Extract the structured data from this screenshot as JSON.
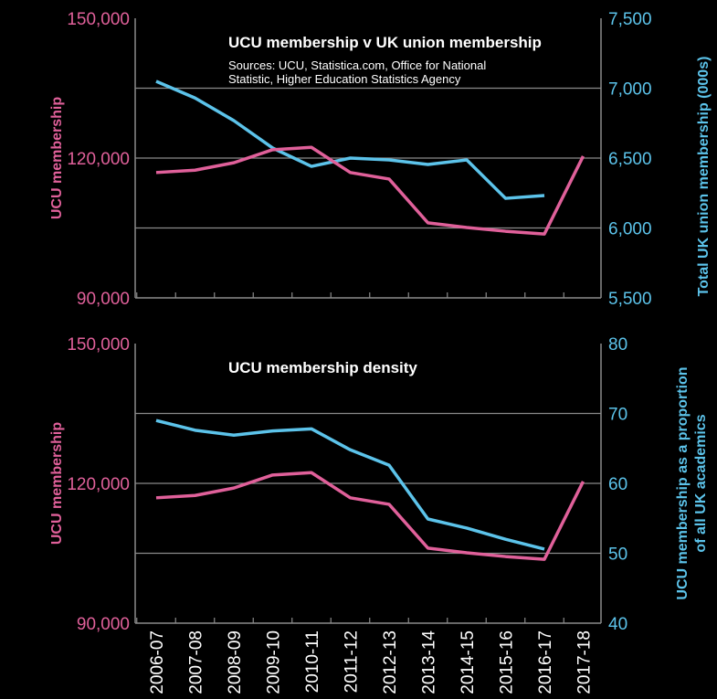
{
  "colors": {
    "ucu": "#e0609a",
    "uk": "#5cc3ea",
    "grid": "#8a8a8a",
    "background": "#000000"
  },
  "chart_data": [
    {
      "type": "line",
      "title": "UCU membership v UK union membership",
      "subtitle_lines": [
        "Sources: UCU, Statistica.com, Office for National",
        "Statistic, Higher Education Statistics Agency"
      ],
      "categories": [
        "2006-07",
        "2007-08",
        "2008-09",
        "2009-10",
        "2010-11",
        "2011-12",
        "2012-13",
        "2013-14",
        "2014-15",
        "2015-16",
        "2016-17",
        "2017-18"
      ],
      "ylabel_left": "UCU membership",
      "ylabel_right": "Total UK union membership (000s)",
      "ylim_left": [
        90000,
        150000
      ],
      "yticks_left": [
        "90,000",
        "120,000",
        "150,000"
      ],
      "ylim_right": [
        5500,
        7500
      ],
      "yticks_right": [
        "5,500",
        "6,000",
        "6,500",
        "7,000",
        "7,500"
      ],
      "grid": true,
      "series": [
        {
          "axis": "left",
          "color": "ucu",
          "values": [
            116900,
            117400,
            119000,
            121800,
            122300,
            116900,
            115500,
            106100,
            105100,
            104300,
            103700,
            120400
          ]
        },
        {
          "axis": "right",
          "color": "uk",
          "values": [
            7049,
            6930,
            6768,
            6572,
            6441,
            6500,
            6487,
            6454,
            6487,
            6212,
            6232,
            null
          ]
        }
      ]
    },
    {
      "type": "line",
      "title": "UCU membership density",
      "categories": [
        "2006-07",
        "2007-08",
        "2008-09",
        "2009-10",
        "2010-11",
        "2011-12",
        "2012-13",
        "2013-14",
        "2014-15",
        "2015-16",
        "2016-17",
        "2017-18"
      ],
      "ylabel_left": "UCU membership",
      "ylabel_right_lines": [
        "UCU membership as a proportion",
        "of all UK academics"
      ],
      "ylim_left": [
        90000,
        150000
      ],
      "yticks_left": [
        "90,000",
        "120,000",
        "150,000"
      ],
      "ylim_right": [
        40,
        80
      ],
      "yticks_right": [
        "40",
        "50",
        "60",
        "70",
        "80"
      ],
      "grid": true,
      "series": [
        {
          "axis": "left",
          "color": "ucu",
          "values": [
            116900,
            117400,
            119000,
            121800,
            122300,
            116900,
            115500,
            106100,
            105100,
            104300,
            103700,
            120400
          ]
        },
        {
          "axis": "right",
          "color": "uk",
          "values": [
            69.0,
            67.6,
            66.9,
            67.5,
            67.8,
            64.8,
            62.6,
            54.9,
            53.6,
            52.0,
            50.6,
            null
          ]
        }
      ]
    }
  ]
}
